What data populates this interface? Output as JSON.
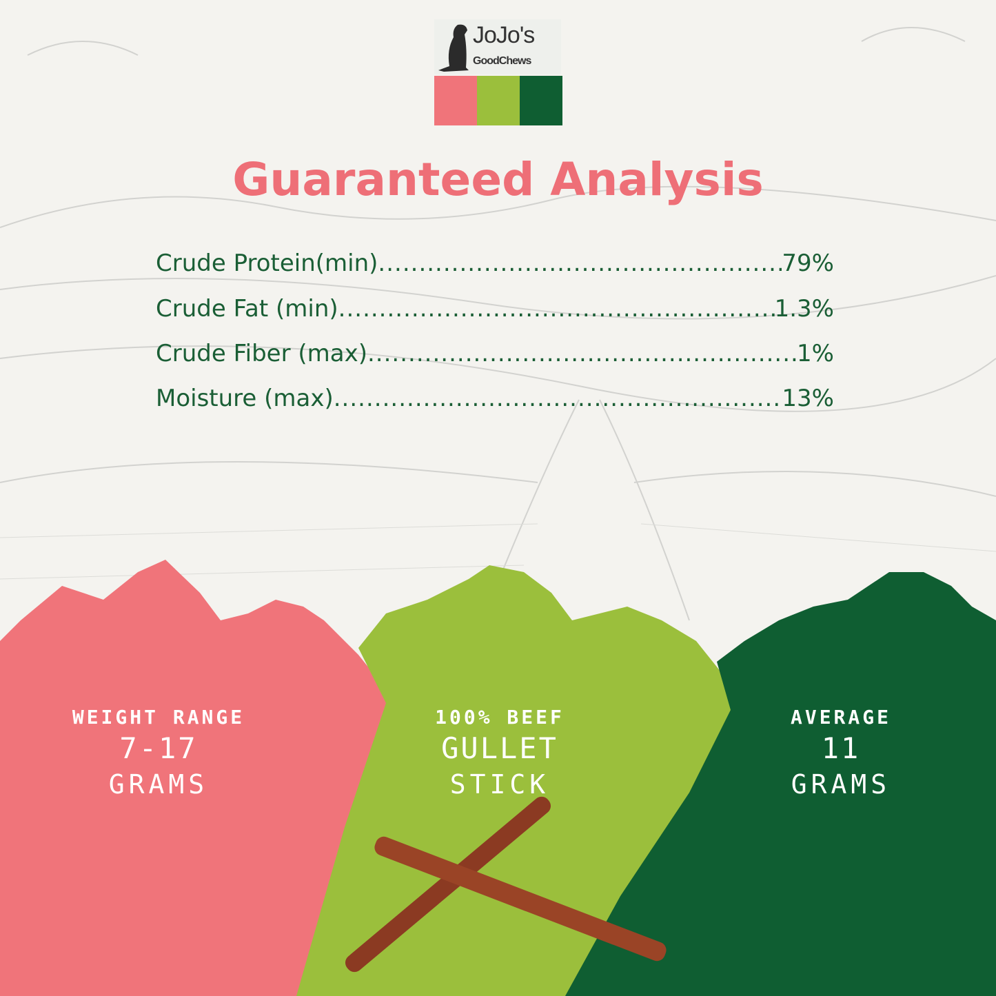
{
  "brand": {
    "logo_text": "JoJo's GoodChews",
    "colors": [
      "#f0747a",
      "#9bbf3c",
      "#0f5e32"
    ]
  },
  "title": "Guaranteed Analysis",
  "analysis": [
    {
      "label": "Crude Protein(min)",
      "value": "79%"
    },
    {
      "label": "Crude Fat (min)",
      "value": "1.3%"
    },
    {
      "label": "Crude Fiber (max)",
      "value": "1%"
    },
    {
      "label": "Moisture (max)",
      "value": "13%"
    }
  ],
  "panels": [
    {
      "line1": "WEIGHT RANGE",
      "line2": "7-17",
      "line3": "GRAMS",
      "color": "#f0747a"
    },
    {
      "line1": "100% BEEF",
      "line2": "GULLET",
      "line3": "STICK",
      "color": "#9bbf3c"
    },
    {
      "line1": "AVERAGE",
      "line2": "11",
      "line3": "GRAMS",
      "color": "#0f5e32"
    }
  ]
}
